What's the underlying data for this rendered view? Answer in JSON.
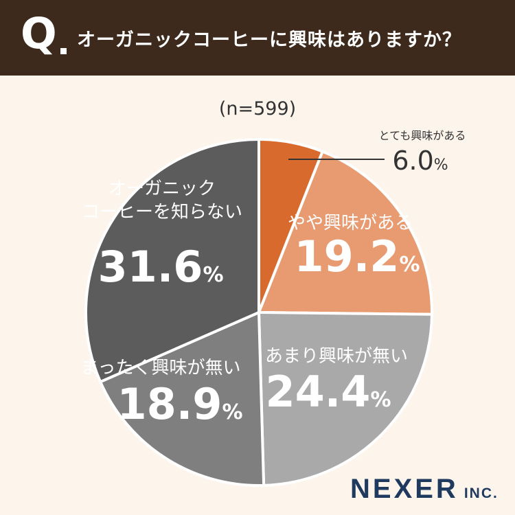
{
  "header": {
    "q_mark": "Q",
    "question": "オーガニックコーヒーに興味はありますか？"
  },
  "sample_label": "(n=599)",
  "chart_data": {
    "type": "pie",
    "start_angle_deg": 0,
    "direction": "clockwise",
    "slices": [
      {
        "label": "とても興味がある",
        "value": 6.0,
        "display": "6.0",
        "unit": "%",
        "color": "#d86a2e",
        "callout": true
      },
      {
        "label": "やや興味がある",
        "value": 19.2,
        "display": "19.2",
        "unit": "%",
        "color": "#e89a70",
        "callout": false
      },
      {
        "label": "あまり興味が無い",
        "value": 24.4,
        "display": "24.4",
        "unit": "%",
        "color": "#a9a9a9",
        "callout": false
      },
      {
        "label": "まったく興味が無い",
        "value": 18.9,
        "display": "18.9",
        "unit": "%",
        "color": "#7f7f7f",
        "callout": false
      },
      {
        "label": "オーガニック\nコーヒーを知らない",
        "value": 31.6,
        "display": "31.6",
        "unit": "%",
        "color": "#5c5c5c",
        "callout": false
      }
    ]
  },
  "logo": {
    "main": "NEXER",
    "sub": "INC."
  }
}
